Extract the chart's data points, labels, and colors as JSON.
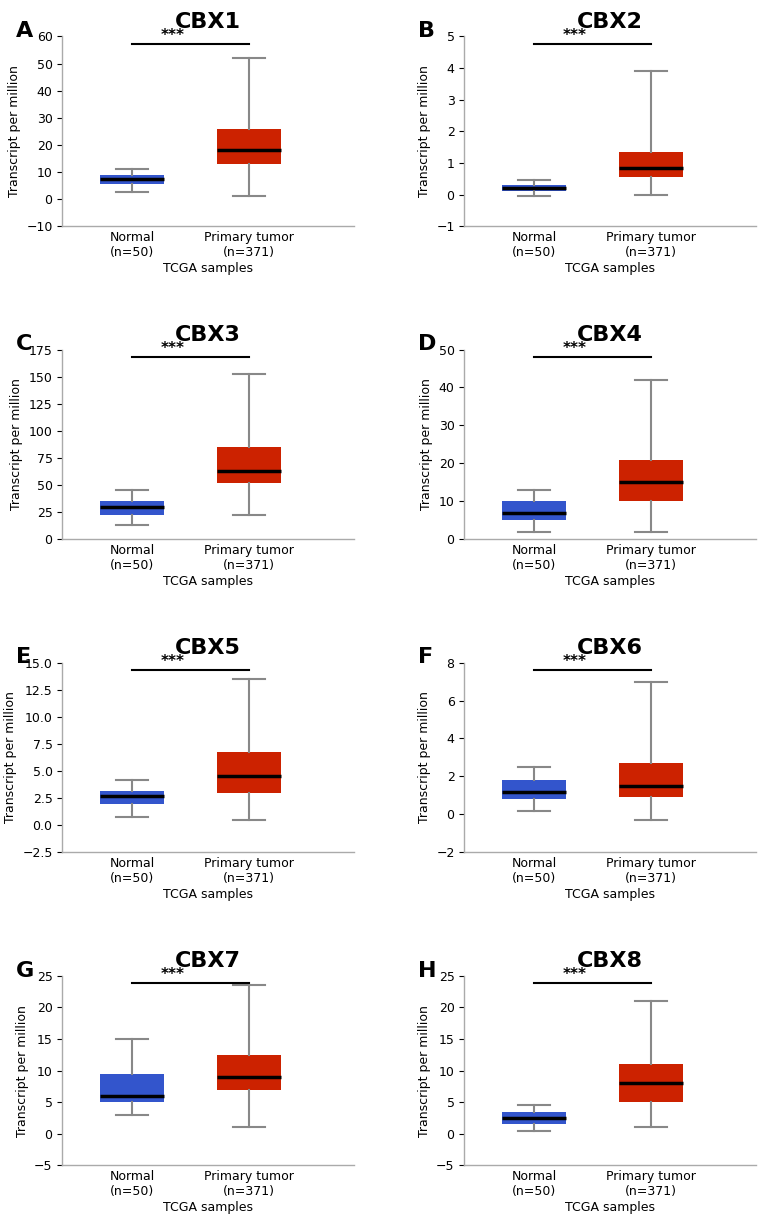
{
  "panels": [
    {
      "label": "A",
      "title": "CBX1",
      "ylim": [
        -10,
        60
      ],
      "yticks": [
        -10,
        0,
        10,
        20,
        30,
        40,
        50,
        60
      ],
      "normal": {
        "whislo": 2.5,
        "q1": 5.5,
        "med": 7.5,
        "q3": 9.0,
        "whishi": 11.0
      },
      "tumor": {
        "whislo": 1.0,
        "q1": 13.0,
        "med": 18.0,
        "q3": 26.0,
        "whishi": 52.0
      }
    },
    {
      "label": "B",
      "title": "CBX2",
      "ylim": [
        -1,
        5
      ],
      "yticks": [
        -1,
        0,
        1,
        2,
        3,
        4,
        5
      ],
      "normal": {
        "whislo": -0.05,
        "q1": 0.1,
        "med": 0.2,
        "q3": 0.3,
        "whishi": 0.45
      },
      "tumor": {
        "whislo": 0.0,
        "q1": 0.55,
        "med": 0.85,
        "q3": 1.35,
        "whishi": 3.9
      }
    },
    {
      "label": "C",
      "title": "CBX3",
      "ylim": [
        0,
        175
      ],
      "yticks": [
        0,
        25,
        50,
        75,
        100,
        125,
        150,
        175
      ],
      "normal": {
        "whislo": 13,
        "q1": 22,
        "med": 30,
        "q3": 35,
        "whishi": 45
      },
      "tumor": {
        "whislo": 22,
        "q1": 52,
        "med": 63,
        "q3": 85,
        "whishi": 152
      }
    },
    {
      "label": "D",
      "title": "CBX4",
      "ylim": [
        0,
        50
      ],
      "yticks": [
        0,
        10,
        20,
        30,
        40,
        50
      ],
      "normal": {
        "whislo": 2.0,
        "q1": 5.0,
        "med": 7.0,
        "q3": 10.0,
        "whishi": 13.0
      },
      "tumor": {
        "whislo": 2.0,
        "q1": 10.0,
        "med": 15.0,
        "q3": 21.0,
        "whishi": 42.0
      }
    },
    {
      "label": "E",
      "title": "CBX5",
      "ylim": [
        -2.5,
        15
      ],
      "yticks": [
        -2.5,
        0.0,
        2.5,
        5.0,
        7.5,
        10.0,
        12.5,
        15.0
      ],
      "normal": {
        "whislo": 0.8,
        "q1": 2.0,
        "med": 2.7,
        "q3": 3.2,
        "whishi": 4.2
      },
      "tumor": {
        "whislo": 0.5,
        "q1": 3.0,
        "med": 4.5,
        "q3": 6.8,
        "whishi": 13.5
      }
    },
    {
      "label": "F",
      "title": "CBX6",
      "ylim": [
        -2,
        8
      ],
      "yticks": [
        -2,
        0,
        2,
        4,
        6,
        8
      ],
      "normal": {
        "whislo": 0.2,
        "q1": 0.8,
        "med": 1.2,
        "q3": 1.8,
        "whishi": 2.5
      },
      "tumor": {
        "whislo": -0.3,
        "q1": 0.9,
        "med": 1.5,
        "q3": 2.7,
        "whishi": 7.0
      }
    },
    {
      "label": "G",
      "title": "CBX7",
      "ylim": [
        -5,
        25
      ],
      "yticks": [
        -5,
        0,
        5,
        10,
        15,
        20,
        25
      ],
      "normal": {
        "whislo": 3.0,
        "q1": 5.0,
        "med": 6.0,
        "q3": 9.5,
        "whishi": 15.0
      },
      "tumor": {
        "whislo": 1.0,
        "q1": 7.0,
        "med": 9.0,
        "q3": 12.5,
        "whishi": 23.5
      }
    },
    {
      "label": "H",
      "title": "CBX8",
      "ylim": [
        -5,
        25
      ],
      "yticks": [
        -5,
        0,
        5,
        10,
        15,
        20,
        25
      ],
      "normal": {
        "whislo": 0.5,
        "q1": 1.5,
        "med": 2.5,
        "q3": 3.5,
        "whishi": 4.5
      },
      "tumor": {
        "whislo": 1.0,
        "q1": 5.0,
        "med": 8.0,
        "q3": 11.0,
        "whishi": 21.0
      }
    }
  ],
  "normal_color": "#3355cc",
  "tumor_color": "#cc2200",
  "xlabel": "TCGA samples",
  "ylabel": "Transcript per million",
  "sig_text": "***",
  "x_tick1_line1": "Normal",
  "x_tick1_line2": "(n=50)",
  "x_tick2_line1": "Primary tumor",
  "x_tick2_line2": "(n=371)",
  "background_color": "#ffffff",
  "box_width": 0.55,
  "panel_label_fontsize": 16,
  "title_fontsize": 16,
  "ylabel_fontsize": 9,
  "xlabel_fontsize": 9,
  "tick_fontsize": 9
}
